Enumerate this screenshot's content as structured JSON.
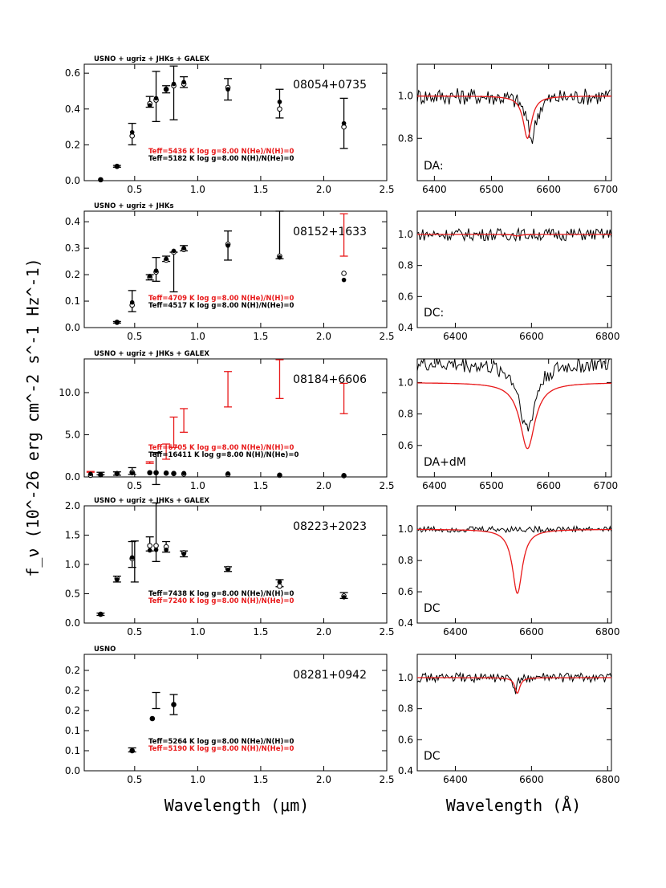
{
  "figure": {
    "ylabel": "f_ν (10^-26 erg cm^-2 s^-1 Hz^-1)",
    "xlabel_left": "Wavelength (μm)",
    "xlabel_right": "Wavelength (Å)"
  },
  "colors": {
    "model_red": "#e8191a",
    "data_black": "#000000"
  },
  "chart_data": [
    {
      "type": "scatter",
      "id": "sed-08054+0735",
      "surveys": "USNO + ugriz + JHKs + GALEX",
      "object": "08054+0735",
      "xlim": [
        0.1,
        2.5
      ],
      "ylim": [
        0,
        0.65
      ],
      "xticks": [
        0.5,
        1.0,
        1.5,
        2.0,
        2.5
      ],
      "xtick_labels": [
        "0.5",
        "1.0",
        "1.5",
        "2.0",
        "2.5"
      ],
      "yticks": [
        0,
        0.2,
        0.4,
        0.6
      ],
      "ytick_labels": [
        "0.0",
        "0.2",
        "0.4",
        "0.6"
      ],
      "observed": [
        {
          "x": 0.36,
          "y": 0.08,
          "err": 0.005
        },
        {
          "x": 0.48,
          "y": 0.26,
          "err": 0.06
        },
        {
          "x": 0.62,
          "y": 0.44,
          "err": 0.03
        },
        {
          "x": 0.67,
          "y": 0.47,
          "err": 0.14
        },
        {
          "x": 0.75,
          "y": 0.51,
          "err": 0.02
        },
        {
          "x": 0.81,
          "y": 0.49,
          "err": 0.15
        },
        {
          "x": 0.89,
          "y": 0.55,
          "err": 0.03
        },
        {
          "x": 1.24,
          "y": 0.51,
          "err": 0.06
        },
        {
          "x": 1.65,
          "y": 0.43,
          "err": 0.08
        },
        {
          "x": 2.16,
          "y": 0.32,
          "err": 0.14,
          "color": "black"
        }
      ],
      "model_filled": [
        0.005,
        0.08,
        0.27,
        0.42,
        0.46,
        0.51,
        0.54,
        0.55,
        0.51,
        0.44,
        0.32
      ],
      "model_open": [
        0.005,
        0.08,
        0.25,
        0.43,
        0.45,
        0.51,
        0.53,
        0.54,
        0.52,
        0.4,
        0.3
      ],
      "model_x": [
        0.23,
        0.36,
        0.48,
        0.62,
        0.67,
        0.75,
        0.81,
        0.89,
        1.24,
        1.65,
        2.16
      ],
      "fits": [
        {
          "label": "Teff=5436 K  log g=8.00  N(He)/N(H)=0",
          "color": "red"
        },
        {
          "label": "Teff=5182 K  log g=8.00  N(H)/N(He)=0",
          "color": "black"
        }
      ]
    },
    {
      "type": "line",
      "id": "spec-08054+0735",
      "classification": "DA:",
      "xlim": [
        6370,
        6710
      ],
      "ylim": [
        0.6,
        1.15
      ],
      "xticks": [
        6400,
        6500,
        6600,
        6700
      ],
      "xtick_labels": [
        "6400",
        "6500",
        "6600",
        "6700"
      ],
      "yticks": [
        0.8,
        1.0
      ],
      "ytick_labels": [
        "0.8",
        "1.0"
      ],
      "model": {
        "center": 6563,
        "depth": 0.2,
        "width": 9
      },
      "noise": 0.04,
      "observed_dip": {
        "center": 6570,
        "depth": 0.2,
        "width": 10
      }
    },
    {
      "type": "scatter",
      "id": "sed-08152+1633",
      "surveys": "USNO + ugriz + JHKs",
      "object": "08152+1633",
      "xlim": [
        0.1,
        2.5
      ],
      "ylim": [
        0,
        0.44
      ],
      "xticks": [
        0.5,
        1.0,
        1.5,
        2.0,
        2.5
      ],
      "xtick_labels": [
        "0.5",
        "1.0",
        "1.5",
        "2.0",
        "2.5"
      ],
      "yticks": [
        0,
        0.1,
        0.2,
        0.3,
        0.4
      ],
      "ytick_labels": [
        "0.0",
        "0.1",
        "0.2",
        "0.3",
        "0.4"
      ],
      "observed": [
        {
          "x": 0.36,
          "y": 0.02,
          "err": 0.003
        },
        {
          "x": 0.48,
          "y": 0.1,
          "err": 0.04
        },
        {
          "x": 0.62,
          "y": 0.19,
          "err": 0.01
        },
        {
          "x": 0.67,
          "y": 0.22,
          "err": 0.045
        },
        {
          "x": 0.75,
          "y": 0.26,
          "err": 0.01
        },
        {
          "x": 0.81,
          "y": 0.21,
          "err": 0.075
        },
        {
          "x": 0.89,
          "y": 0.3,
          "err": 0.01
        },
        {
          "x": 1.24,
          "y": 0.31,
          "err": 0.055
        },
        {
          "x": 1.65,
          "y": 0.35,
          "err": 0.09
        },
        {
          "x": 2.16,
          "y": 0.35,
          "err": 0.08,
          "color": "red"
        }
      ],
      "model_filled": [
        0.02,
        0.095,
        0.195,
        0.215,
        0.26,
        0.29,
        0.3,
        0.31,
        0.265,
        0.18
      ],
      "model_open": [
        0.02,
        0.085,
        0.19,
        0.21,
        0.255,
        0.285,
        0.295,
        0.315,
        0.27,
        0.205
      ],
      "model_x": [
        0.36,
        0.48,
        0.62,
        0.67,
        0.75,
        0.81,
        0.89,
        1.24,
        1.65,
        2.16
      ],
      "fits": [
        {
          "label": "Teff=4709 K  log g=8.00  N(He)/N(H)=0",
          "color": "red"
        },
        {
          "label": "Teff=4517 K  log g=8.00  N(H)/N(He)=0",
          "color": "black"
        }
      ]
    },
    {
      "type": "line",
      "id": "spec-08152+1633",
      "classification": "DC:",
      "xlim": [
        6300,
        6810
      ],
      "ylim": [
        0.4,
        1.15
      ],
      "xticks": [
        6400,
        6600,
        6800
      ],
      "xtick_labels": [
        "6400",
        "6600",
        "6800"
      ],
      "yticks": [
        0.4,
        0.6,
        0.8,
        1.0
      ],
      "ytick_labels": [
        "0.4",
        "0.6",
        "0.8",
        "1.0"
      ],
      "model": {
        "center": 6563,
        "depth": 0.01,
        "width": 10
      },
      "noise": 0.04
    },
    {
      "type": "scatter",
      "id": "sed-08184+6606",
      "surveys": "USNO + ugriz + JHKs + GALEX",
      "object": "08184+6606",
      "xlim": [
        0.1,
        2.5
      ],
      "ylim": [
        0,
        14
      ],
      "xticks": [
        0.5,
        1.0,
        1.5,
        2.0,
        2.5
      ],
      "xtick_labels": [
        "0.5",
        "1.0",
        "1.5",
        "2.0",
        "2.5"
      ],
      "yticks": [
        0,
        5,
        10
      ],
      "ytick_labels": [
        "0.0",
        "5.0",
        "10.0"
      ],
      "observed": [
        {
          "x": 0.15,
          "y": 0.6,
          "err": 0.05,
          "color": "red"
        },
        {
          "x": 0.23,
          "y": 0.4,
          "err": 0.15
        },
        {
          "x": 0.36,
          "y": 0.4,
          "err": 0.2
        },
        {
          "x": 0.48,
          "y": 0.7,
          "err": 0.4
        },
        {
          "x": 0.62,
          "y": 1.7,
          "err": 0.1,
          "color": "red"
        },
        {
          "x": 0.67,
          "y": 1.0,
          "err": 1.9
        },
        {
          "x": 0.75,
          "y": 3.0,
          "err": 0.9,
          "color": "red"
        },
        {
          "x": 0.81,
          "y": 5.3,
          "err": 1.8,
          "color": "red"
        },
        {
          "x": 0.89,
          "y": 6.7,
          "err": 1.4,
          "color": "red"
        },
        {
          "x": 1.24,
          "y": 10.4,
          "err": 2.1,
          "color": "red"
        },
        {
          "x": 1.65,
          "y": 11.6,
          "err": 2.3,
          "color": "red"
        },
        {
          "x": 2.16,
          "y": 9.3,
          "err": 1.8,
          "color": "red"
        }
      ],
      "model_filled": [
        0.35,
        0.25,
        0.4,
        0.45,
        0.5,
        0.45,
        0.5,
        0.45,
        0.45,
        0.4,
        0.25,
        0.2
      ],
      "model_open": [
        0.2,
        0.25,
        0.4,
        0.55,
        0.5,
        0.5,
        0.45,
        0.4,
        0.35,
        0.3,
        0.2,
        0.15
      ],
      "model_x": [
        0.15,
        0.23,
        0.36,
        0.48,
        0.62,
        0.67,
        0.75,
        0.81,
        0.89,
        1.24,
        1.65,
        2.16
      ],
      "fits": [
        {
          "label": "Teff=6705 K  log g=8.00  N(He)/N(H)=0",
          "color": "red"
        },
        {
          "label": "Teff=16411 K  log g=8.00  N(H)/N(He)=0",
          "color": "black"
        }
      ]
    },
    {
      "type": "line",
      "id": "spec-08184+6606",
      "classification": "DA+dM",
      "xlim": [
        6370,
        6710
      ],
      "ylim": [
        0.4,
        1.15
      ],
      "xticks": [
        6400,
        6500,
        6600,
        6700
      ],
      "xtick_labels": [
        "6400",
        "6500",
        "6600",
        "6700"
      ],
      "yticks": [
        0.6,
        0.8,
        1.0
      ],
      "ytick_labels": [
        "0.6",
        "0.8",
        "1.0"
      ],
      "model": {
        "center": 6563,
        "depth": 0.42,
        "width": 16
      },
      "noise": 0.05,
      "observed_offset": 0.12
    },
    {
      "type": "scatter",
      "id": "sed-08223+2023",
      "surveys": "USNO + ugriz + JHKs + GALEX",
      "object": "08223+2023",
      "xlim": [
        0.1,
        2.5
      ],
      "ylim": [
        0,
        2.0
      ],
      "xticks": [
        0.5,
        1.0,
        1.5,
        2.0,
        2.5
      ],
      "xtick_labels": [
        "0.5",
        "1.0",
        "1.5",
        "2.0",
        "2.5"
      ],
      "yticks": [
        0,
        0.5,
        1.0,
        1.5,
        2.0
      ],
      "ytick_labels": [
        "0.0",
        "0.5",
        "1.0",
        "1.5",
        "2.0"
      ],
      "observed": [
        {
          "x": 0.23,
          "y": 0.15,
          "err": 0.02
        },
        {
          "x": 0.36,
          "y": 0.75,
          "err": 0.05
        },
        {
          "x": 0.48,
          "y": 1.17,
          "err": 0.22
        },
        {
          "x": 0.5,
          "y": 1.05,
          "err": 0.35
        },
        {
          "x": 0.62,
          "y": 1.35,
          "err": 0.12
        },
        {
          "x": 0.67,
          "y": 1.55,
          "err": 0.5
        },
        {
          "x": 0.75,
          "y": 1.3,
          "err": 0.09
        },
        {
          "x": 0.89,
          "y": 1.18,
          "err": 0.05
        },
        {
          "x": 1.24,
          "y": 0.92,
          "err": 0.04
        },
        {
          "x": 1.65,
          "y": 0.68,
          "err": 0.06
        },
        {
          "x": 2.16,
          "y": 0.47,
          "err": 0.05
        }
      ],
      "model_filled": [
        0.15,
        0.74,
        1.12,
        1.24,
        1.25,
        1.25,
        1.18,
        0.91,
        0.7,
        0.44
      ],
      "model_open": [
        0.15,
        0.76,
        1.1,
        1.32,
        1.32,
        1.3,
        1.2,
        0.93,
        0.63,
        0.46
      ],
      "model_x": [
        0.23,
        0.36,
        0.48,
        0.62,
        0.67,
        0.75,
        0.89,
        1.24,
        1.65,
        2.16
      ],
      "fits": [
        {
          "label": "Teff=7438 K  log g=8.00  N(He)/N(H)=0",
          "color": "black"
        },
        {
          "label": "Teff=7240 K  log g=8.00  N(H)/N(He)=0",
          "color": "red"
        }
      ]
    },
    {
      "type": "line",
      "id": "spec-08223+2023",
      "classification": "DC",
      "xlim": [
        6300,
        6810
      ],
      "ylim": [
        0.4,
        1.15
      ],
      "xticks": [
        6400,
        6600,
        6800
      ],
      "xtick_labels": [
        "6400",
        "6600",
        "6800"
      ],
      "yticks": [
        0.4,
        0.6,
        0.8,
        1.0
      ],
      "ytick_labels": [
        "0.4",
        "0.6",
        "0.8",
        "1.0"
      ],
      "model": {
        "center": 6563,
        "depth": 0.41,
        "width": 16
      },
      "noise": 0.02
    },
    {
      "type": "scatter",
      "id": "sed-08281+0942",
      "surveys": "USNO",
      "object": "08281+0942",
      "xlim": [
        0.1,
        2.5
      ],
      "ylim": [
        0,
        0.29
      ],
      "xticks": [
        0.5,
        1.0,
        1.5,
        2.0,
        2.5
      ],
      "xtick_labels": [
        "0.5",
        "1.0",
        "1.5",
        "2.0",
        "2.5"
      ],
      "yticks": [
        0,
        0.05,
        0.1,
        0.15,
        0.2,
        0.25
      ],
      "ytick_labels": [
        "0.0",
        "0.1",
        "0.1",
        "0.2",
        "0.2",
        "0.2"
      ],
      "observed": [
        {
          "x": 0.48,
          "y": 0.052,
          "err": 0.005
        },
        {
          "x": 0.67,
          "y": 0.175,
          "err": 0.02
        },
        {
          "x": 0.81,
          "y": 0.165,
          "err": 0.025
        }
      ],
      "model_filled": [
        0.05,
        0.13,
        0.165
      ],
      "model_open": [
        0.05,
        0.13,
        0.165
      ],
      "model_x": [
        0.48,
        0.64,
        0.81
      ],
      "fits": [
        {
          "label": "Teff=5264 K  log g=8.00  N(He)/N(H)=0",
          "color": "black"
        },
        {
          "label": "Teff=5190 K  log g=8.00  N(H)/N(He)=0",
          "color": "red"
        }
      ]
    },
    {
      "type": "line",
      "id": "spec-08281+0942",
      "classification": "DC",
      "xlim": [
        6300,
        6810
      ],
      "ylim": [
        0.4,
        1.15
      ],
      "xticks": [
        6400,
        6600,
        6800
      ],
      "xtick_labels": [
        "6400",
        "6600",
        "6800"
      ],
      "yticks": [
        0.4,
        0.6,
        0.8,
        1.0
      ],
      "ytick_labels": [
        "0.4",
        "0.6",
        "0.8",
        "1.0"
      ],
      "model": {
        "center": 6563,
        "depth": 0.1,
        "width": 8
      },
      "noise": 0.03,
      "observed_dip": {
        "center": 6558,
        "depth": 0.09,
        "width": 6
      }
    }
  ]
}
